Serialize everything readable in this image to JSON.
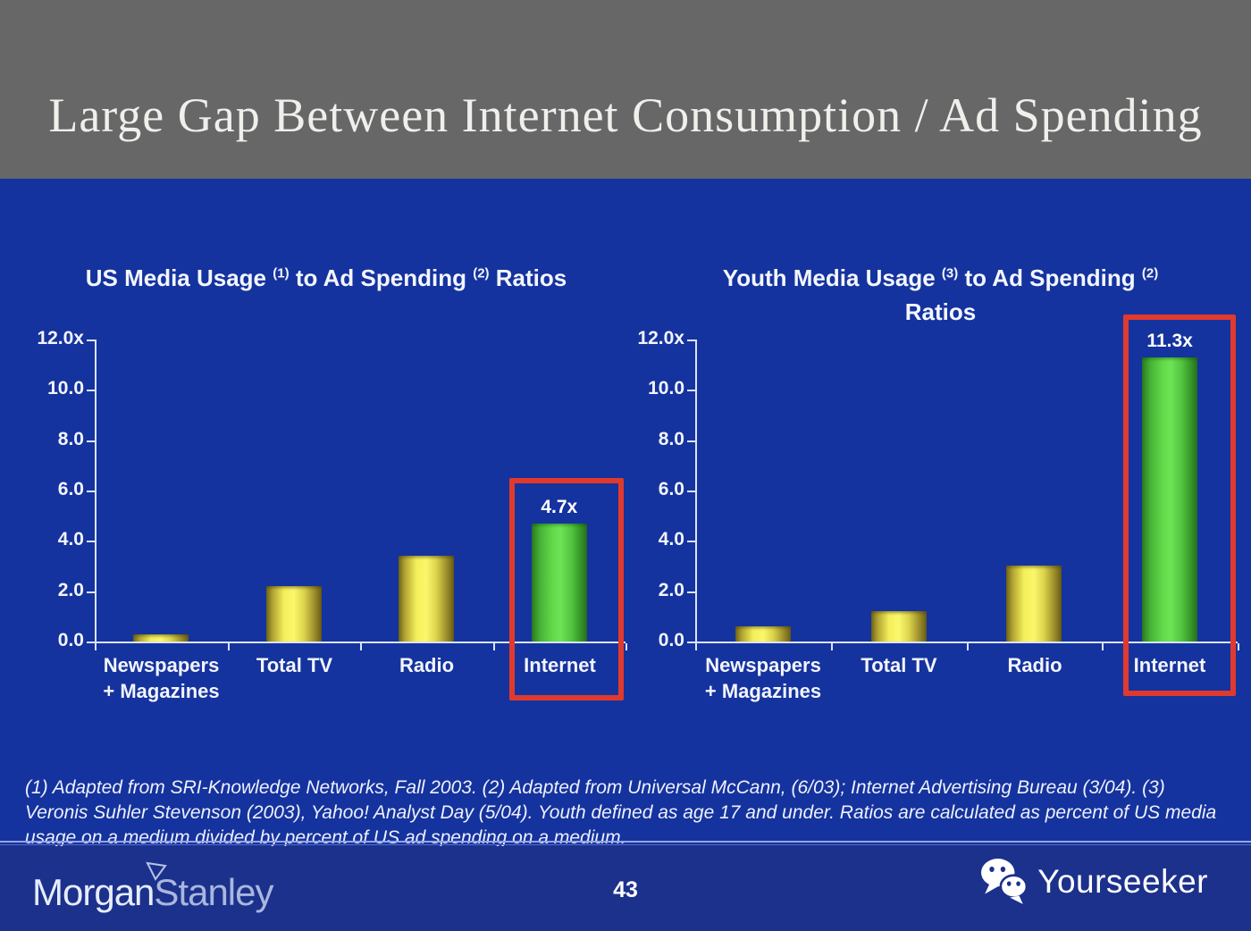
{
  "header": {
    "title": "Large Gap Between Internet Consumption / Ad Spending"
  },
  "footnote": "(1) Adapted from SRI-Knowledge Networks, Fall 2003.  (2) Adapted from Universal McCann, (6/03); Internet Advertising Bureau (3/04). (3) Veronis Suhler Stevenson (2003), Yahoo! Analyst Day (5/04).  Youth defined as age 17 and under.  Ratios are calculated as percent of US media usage on a medium divided by percent of US ad spending on a medium.",
  "footer": {
    "brand_part1": "Morgan",
    "brand_part2": "Stanley",
    "page_number": "43",
    "watermark_text": "Yourseeker",
    "watermark_icon": "wechat-icon",
    "brand_icon": "pennant-icon"
  },
  "colors": {
    "header_bg": "#676767",
    "slide_bg": "#15339e",
    "footer_bg": "#1c318c",
    "highlight_red": "#e03a2e",
    "bar_yellow": "#f8f468",
    "bar_green": "#5cd846",
    "axis": "#dce2f6",
    "title_text": "#f0efec",
    "chart_text": "#f3f5fc"
  },
  "chart_data": [
    {
      "type": "bar",
      "title": "US Media Usage (1) to Ad Spending (2) Ratios",
      "title_parts": [
        "US Media Usage",
        "(1)",
        "to Ad Spending",
        "(2)",
        "Ratios"
      ],
      "categories": [
        "Newspapers + Magazines",
        "Total TV",
        "Radio",
        "Internet"
      ],
      "label_lines": [
        [
          "Newspapers",
          "+ Magazines"
        ],
        [
          "Total TV"
        ],
        [
          "Radio"
        ],
        [
          "Internet"
        ]
      ],
      "values": [
        0.3,
        2.2,
        3.4,
        4.7
      ],
      "bar_colors": [
        "yellow",
        "yellow",
        "yellow",
        "green"
      ],
      "bar_value_labels": [
        "",
        "",
        "",
        "4.7x"
      ],
      "highlight_index": 3,
      "xlabel": "",
      "ylabel": "",
      "ylim": [
        0,
        12
      ],
      "yticks": [
        "12.0x",
        "10.0",
        "8.0",
        "6.0",
        "4.0",
        "2.0",
        "0.0"
      ],
      "grid": false,
      "legend": null
    },
    {
      "type": "bar",
      "title": "Youth Media Usage (3) to Ad Spending (2) Ratios",
      "title_parts": [
        "Youth Media Usage",
        "(3)",
        "to Ad Spending",
        "(2)",
        "Ratios"
      ],
      "categories": [
        "Newspapers + Magazines",
        "Total TV",
        "Radio",
        "Internet"
      ],
      "label_lines": [
        [
          "Newspapers",
          "+ Magazines"
        ],
        [
          "Total TV"
        ],
        [
          "Radio"
        ],
        [
          "Internet"
        ]
      ],
      "values": [
        0.6,
        1.2,
        3.0,
        11.3
      ],
      "bar_colors": [
        "yellow",
        "yellow",
        "yellow",
        "green"
      ],
      "bar_value_labels": [
        "",
        "",
        "",
        "11.3x"
      ],
      "highlight_index": 3,
      "xlabel": "",
      "ylabel": "",
      "ylim": [
        0,
        12
      ],
      "yticks": [
        "12.0x",
        "10.0",
        "8.0",
        "6.0",
        "4.0",
        "2.0",
        "0.0"
      ],
      "grid": false,
      "legend": null
    }
  ]
}
